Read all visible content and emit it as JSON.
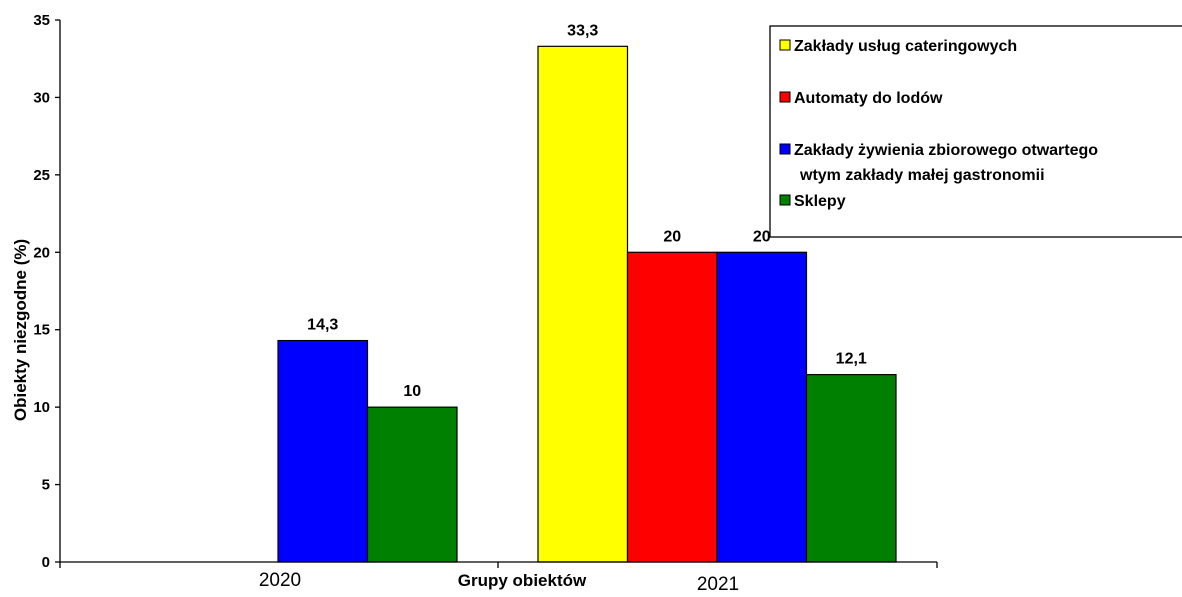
{
  "chart_data": {
    "type": "bar",
    "categories": [
      "2020",
      "2021"
    ],
    "series": [
      {
        "name": "Zakłady usług cateringowych",
        "color": "#ffff00",
        "values": [
          null,
          33.3
        ],
        "labels": [
          "",
          "33,3"
        ]
      },
      {
        "name": "Automaty do lodów",
        "color": "#ff0000",
        "values": [
          null,
          20
        ],
        "labels": [
          "",
          "20"
        ]
      },
      {
        "name": "Zakłady żywienia zbiorowego otwartego wtym zakłady małej gastronomii",
        "name_lines": [
          "Zakłady żywienia zbiorowego otwartego",
          "wtym zakłady małej gastronomii"
        ],
        "color": "#0000ff",
        "values": [
          14.3,
          20
        ],
        "labels": [
          "14,3",
          "20"
        ]
      },
      {
        "name": "Sklepy",
        "color": "#008000",
        "values": [
          10,
          12.1
        ],
        "labels": [
          "10",
          "12,1"
        ]
      }
    ],
    "xlabel": "Grupy obiektów",
    "ylabel": "Obiekty niezgodne  (%)",
    "ylim": [
      0,
      35
    ],
    "yticks": [
      0,
      5,
      10,
      15,
      20,
      25,
      30,
      35
    ],
    "grid": false,
    "legend": "top-right"
  }
}
